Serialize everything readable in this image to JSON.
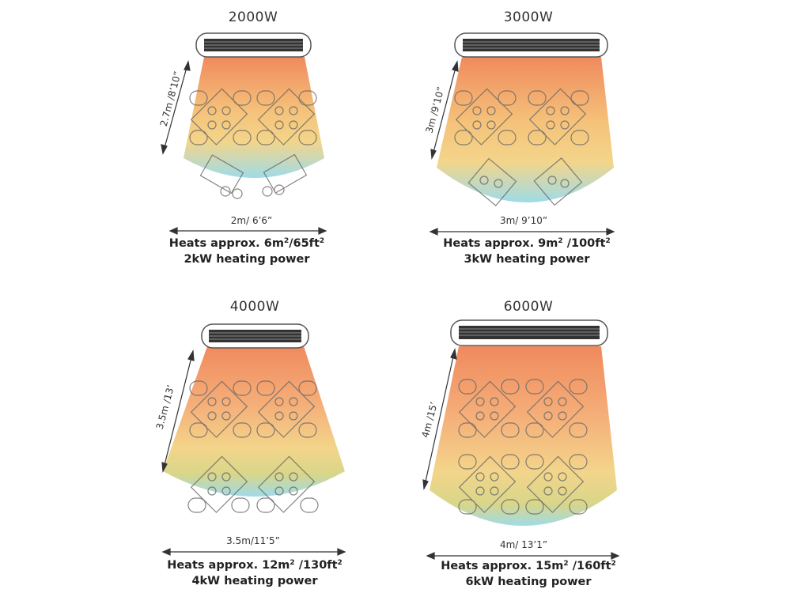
{
  "heaters": [
    {
      "wattage": "2000W",
      "height_label": "2.7m /8’10”",
      "width_label": "2m/ 6’6”",
      "heats_prefix": "Heats approx. 6m",
      "heats_mid": "/65ft",
      "heats_suffix": "",
      "power": "2kW heating power"
    },
    {
      "wattage": "3000W",
      "height_label": "3m /9’10”",
      "width_label": "3m/ 9’10”",
      "heats_prefix": "Heats approx. 9m",
      "heats_mid": " /100ft",
      "heats_suffix": "",
      "power": "3kW heating power"
    },
    {
      "wattage": "4000W",
      "height_label": "3.5m /13’",
      "width_label": "3.5m/11’5”",
      "heats_prefix": "Heats approx. 12m",
      "heats_mid": " /130ft",
      "heats_suffix": "",
      "power": "4kW  heating power"
    },
    {
      "wattage": "6000W",
      "height_label": "4m /15’",
      "width_label": "4m/ 13’1”",
      "heats_prefix": "Heats approx. 15m",
      "heats_mid": "  /160ft",
      "heats_suffix": "",
      "power": "6kW heating power"
    }
  ],
  "superscript": "2",
  "colors": {
    "heat_top": "#f08a5d",
    "heat_mid": "#f5c27a",
    "heat_low": "#f3d58a",
    "heat_cool": "#9fdbe8",
    "outline": "#555555",
    "heater_grill": "#333333"
  }
}
